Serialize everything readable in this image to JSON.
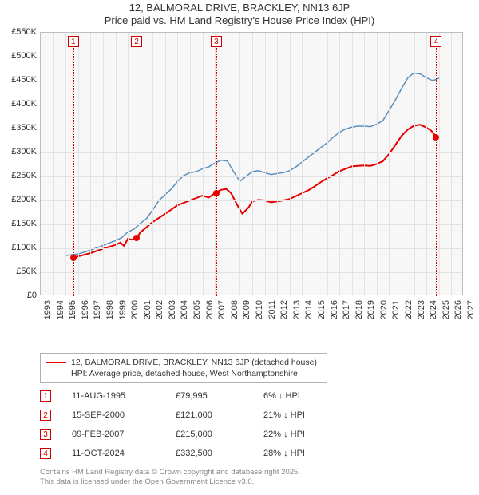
{
  "title": "12, BALMORAL DRIVE, BRACKLEY, NN13 6JP",
  "subtitle": "Price paid vs. HM Land Registry's House Price Index (HPI)",
  "chart": {
    "type": "line",
    "background_color": "#f7f7f7",
    "plot_border_color": "#bdbdbd",
    "grid_color": "#e3e3e3",
    "x": {
      "min": 1993,
      "max": 2027,
      "ticks": [
        1993,
        1994,
        1995,
        1996,
        1997,
        1998,
        1999,
        2000,
        2001,
        2002,
        2003,
        2004,
        2005,
        2006,
        2007,
        2008,
        2009,
        2010,
        2011,
        2012,
        2013,
        2014,
        2015,
        2016,
        2017,
        2018,
        2019,
        2020,
        2021,
        2022,
        2023,
        2024,
        2025,
        2026,
        2027
      ],
      "label_fontsize": 11,
      "label_rotation": -90
    },
    "y": {
      "min": 0,
      "max": 550,
      "unit_suffix": "K",
      "unit_prefix": "£",
      "ticks": [
        0,
        50,
        100,
        150,
        200,
        250,
        300,
        350,
        400,
        450,
        500,
        550
      ],
      "tick_labels": [
        "£0",
        "£50K",
        "£100K",
        "£150K",
        "£200K",
        "£250K",
        "£300K",
        "£350K",
        "£400K",
        "£450K",
        "£500K",
        "£550K"
      ],
      "label_fontsize": 11
    },
    "markers": [
      {
        "n": "1",
        "year": 1995.62,
        "price": 79.995
      },
      {
        "n": "2",
        "year": 2000.71,
        "price": 121.0
      },
      {
        "n": "3",
        "year": 2007.11,
        "price": 215.0
      },
      {
        "n": "4",
        "year": 2024.78,
        "price": 332.5
      }
    ],
    "marker_box_border": "#d00000",
    "marker_box_text": "#d00000",
    "marker_line_color": "#d00000",
    "series": [
      {
        "name": "property",
        "label": "12, BALMORAL DRIVE, BRACKLEY, NN13 6JP (detached house)",
        "color": "#e60000",
        "line_width": 2,
        "dot_color": "#e60000",
        "points": [
          [
            1995.6,
            80
          ],
          [
            1996,
            83
          ],
          [
            1997,
            90
          ],
          [
            1998,
            99
          ],
          [
            1999,
            107
          ],
          [
            1999.4,
            112
          ],
          [
            1999.7,
            105
          ],
          [
            2000,
            120
          ],
          [
            2000.3,
            118
          ],
          [
            2000.7,
            121
          ],
          [
            2001,
            133
          ],
          [
            2002,
            155
          ],
          [
            2003,
            172
          ],
          [
            2004,
            190
          ],
          [
            2005,
            200
          ],
          [
            2006,
            210
          ],
          [
            2006.5,
            206
          ],
          [
            2007,
            215
          ],
          [
            2007.5,
            222
          ],
          [
            2007.9,
            224
          ],
          [
            2008.3,
            215
          ],
          [
            2008.8,
            190
          ],
          [
            2009.2,
            172
          ],
          [
            2009.7,
            185
          ],
          [
            2010,
            198
          ],
          [
            2010.5,
            201
          ],
          [
            2011,
            200
          ],
          [
            2011.5,
            196
          ],
          [
            2012,
            198
          ],
          [
            2012.5,
            200
          ],
          [
            2013,
            203
          ],
          [
            2013.5,
            209
          ],
          [
            2014,
            215
          ],
          [
            2014.5,
            221
          ],
          [
            2015,
            229
          ],
          [
            2015.5,
            238
          ],
          [
            2016,
            246
          ],
          [
            2016.5,
            253
          ],
          [
            2017,
            261
          ],
          [
            2017.5,
            266
          ],
          [
            2018,
            271
          ],
          [
            2018.5,
            272
          ],
          [
            2019,
            273
          ],
          [
            2019.5,
            272
          ],
          [
            2020,
            276
          ],
          [
            2020.5,
            282
          ],
          [
            2021,
            297
          ],
          [
            2021.5,
            316
          ],
          [
            2022,
            335
          ],
          [
            2022.5,
            348
          ],
          [
            2023,
            356
          ],
          [
            2023.5,
            358
          ],
          [
            2024,
            352
          ],
          [
            2024.4,
            345
          ],
          [
            2024.78,
            332.5
          ]
        ]
      },
      {
        "name": "hpi",
        "label": "HPI: Average price, detached house, West Northamptonshire",
        "color": "#5a8fbf",
        "line_width": 1.5,
        "points": [
          [
            1995,
            85
          ],
          [
            1996,
            88
          ],
          [
            1997,
            96
          ],
          [
            1998,
            106
          ],
          [
            1999,
            116
          ],
          [
            1999.5,
            122
          ],
          [
            2000,
            134
          ],
          [
            2000.5,
            140
          ],
          [
            2001,
            152
          ],
          [
            2001.5,
            162
          ],
          [
            2002,
            180
          ],
          [
            2002.5,
            200
          ],
          [
            2003,
            212
          ],
          [
            2003.5,
            224
          ],
          [
            2004,
            240
          ],
          [
            2004.5,
            252
          ],
          [
            2005,
            258
          ],
          [
            2005.5,
            260
          ],
          [
            2006,
            266
          ],
          [
            2006.5,
            270
          ],
          [
            2007,
            278
          ],
          [
            2007.5,
            284
          ],
          [
            2008,
            282
          ],
          [
            2008.5,
            260
          ],
          [
            2009,
            240
          ],
          [
            2009.5,
            250
          ],
          [
            2010,
            260
          ],
          [
            2010.5,
            262
          ],
          [
            2011,
            258
          ],
          [
            2011.5,
            254
          ],
          [
            2012,
            256
          ],
          [
            2012.5,
            258
          ],
          [
            2013,
            262
          ],
          [
            2013.5,
            270
          ],
          [
            2014,
            280
          ],
          [
            2014.5,
            290
          ],
          [
            2015,
            300
          ],
          [
            2015.5,
            310
          ],
          [
            2016,
            320
          ],
          [
            2016.5,
            332
          ],
          [
            2017,
            342
          ],
          [
            2017.5,
            349
          ],
          [
            2018,
            353
          ],
          [
            2018.5,
            355
          ],
          [
            2019,
            355
          ],
          [
            2019.5,
            354
          ],
          [
            2020,
            359
          ],
          [
            2020.5,
            367
          ],
          [
            2021,
            388
          ],
          [
            2021.5,
            410
          ],
          [
            2022,
            434
          ],
          [
            2022.5,
            456
          ],
          [
            2023,
            466
          ],
          [
            2023.5,
            464
          ],
          [
            2024,
            456
          ],
          [
            2024.5,
            450
          ],
          [
            2025,
            455
          ]
        ]
      }
    ]
  },
  "legend": {
    "border_color": "#b0b0b0",
    "fontsize": 10.5
  },
  "sales": [
    {
      "n": "1",
      "date": "11-AUG-1995",
      "price": "£79,995",
      "diff": "6% ↓ HPI"
    },
    {
      "n": "2",
      "date": "15-SEP-2000",
      "price": "£121,000",
      "diff": "21% ↓ HPI"
    },
    {
      "n": "3",
      "date": "09-FEB-2007",
      "price": "£215,000",
      "diff": "22% ↓ HPI"
    },
    {
      "n": "4",
      "date": "11-OCT-2024",
      "price": "£332,500",
      "diff": "28% ↓ HPI"
    }
  ],
  "attribution": {
    "line1": "Contains HM Land Registry data © Crown copyright and database right 2025.",
    "line2": "This data is licensed under the Open Government Licence v3.0.",
    "color": "#888888"
  }
}
